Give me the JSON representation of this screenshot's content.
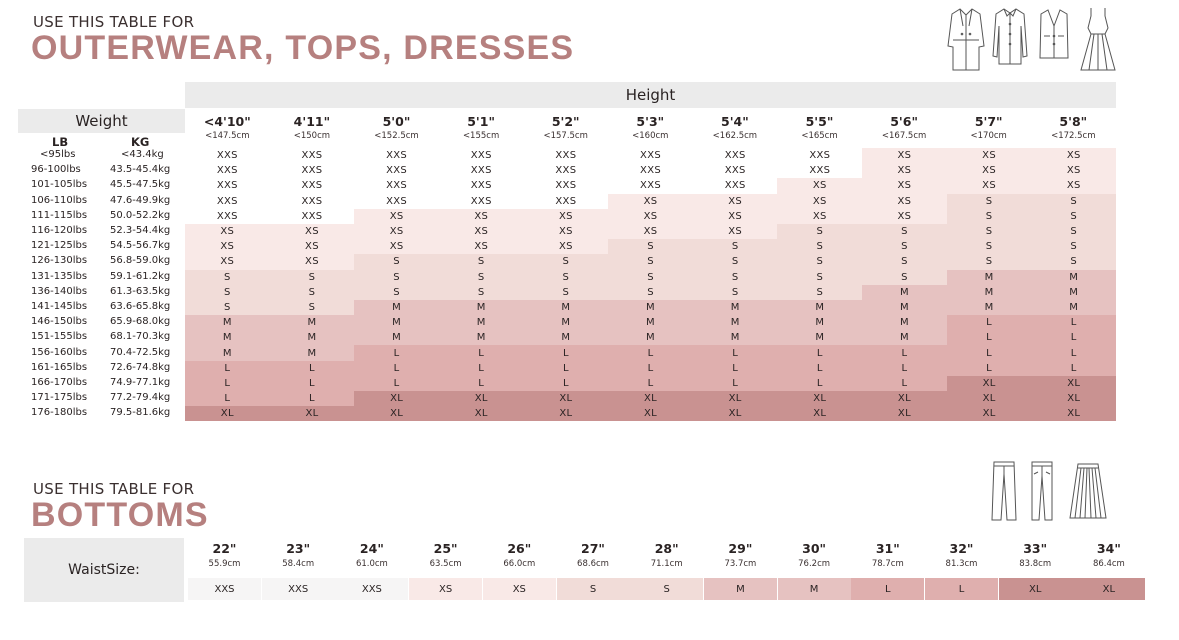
{
  "section1": {
    "eyebrow": "USE THIS TABLE FOR",
    "title": "OUTERWEAR, TOPS, DRESSES",
    "title_color": "#b6807f",
    "icons": [
      "trench-coat-icon",
      "shirt-icon",
      "vest-icon",
      "dress-icon"
    ],
    "height_label": "Height",
    "weight_label": "Weight",
    "lb_label": "LB",
    "kg_label": "KG",
    "heights": [
      {
        "ft": "<4'10\"",
        "cm": "<147.5cm"
      },
      {
        "ft": "4'11\"",
        "cm": "<150cm"
      },
      {
        "ft": "5'0\"",
        "cm": "<152.5cm"
      },
      {
        "ft": "5'1\"",
        "cm": "<155cm"
      },
      {
        "ft": "5'2\"",
        "cm": "<157.5cm"
      },
      {
        "ft": "5'3\"",
        "cm": "<160cm"
      },
      {
        "ft": "5'4\"",
        "cm": "<162.5cm"
      },
      {
        "ft": "5'5\"",
        "cm": "<165cm"
      },
      {
        "ft": "5'6\"",
        "cm": "<167.5cm"
      },
      {
        "ft": "5'7\"",
        "cm": "<170cm"
      },
      {
        "ft": "5'8\"",
        "cm": "<172.5cm"
      }
    ],
    "weights": [
      {
        "lb": "<95lbs",
        "kg": "<43.4kg"
      },
      {
        "lb": "96-100lbs",
        "kg": "43.5-45.4kg"
      },
      {
        "lb": "101-105lbs",
        "kg": "45.5-47.5kg"
      },
      {
        "lb": "106-110lbs",
        "kg": "47.6-49.9kg"
      },
      {
        "lb": "111-115lbs",
        "kg": "50.0-52.2kg"
      },
      {
        "lb": "116-120lbs",
        "kg": "52.3-54.4kg"
      },
      {
        "lb": "121-125lbs",
        "kg": "54.5-56.7kg"
      },
      {
        "lb": "126-130lbs",
        "kg": "56.8-59.0kg"
      },
      {
        "lb": "131-135lbs",
        "kg": "59.1-61.2kg"
      },
      {
        "lb": "136-140lbs",
        "kg": "61.3-63.5kg"
      },
      {
        "lb": "141-145lbs",
        "kg": "63.6-65.8kg"
      },
      {
        "lb": "146-150lbs",
        "kg": "65.9-68.0kg"
      },
      {
        "lb": "151-155lbs",
        "kg": "68.1-70.3kg"
      },
      {
        "lb": "156-160lbs",
        "kg": "70.4-72.5kg"
      },
      {
        "lb": "161-165lbs",
        "kg": "72.6-74.8kg"
      },
      {
        "lb": "166-170lbs",
        "kg": "74.9-77.1kg"
      },
      {
        "lb": "171-175lbs",
        "kg": "77.2-79.4kg"
      },
      {
        "lb": "176-180lbs",
        "kg": "79.5-81.6kg"
      }
    ],
    "sizes": [
      [
        "XXS",
        "XXS",
        "XXS",
        "XXS",
        "XXS",
        "XXS",
        "XXS",
        "XXS",
        "XS",
        "XS",
        "XS"
      ],
      [
        "XXS",
        "XXS",
        "XXS",
        "XXS",
        "XXS",
        "XXS",
        "XXS",
        "XXS",
        "XS",
        "XS",
        "XS"
      ],
      [
        "XXS",
        "XXS",
        "XXS",
        "XXS",
        "XXS",
        "XXS",
        "XXS",
        "XS",
        "XS",
        "XS",
        "XS"
      ],
      [
        "XXS",
        "XXS",
        "XXS",
        "XXS",
        "XXS",
        "XS",
        "XS",
        "XS",
        "XS",
        "S",
        "S"
      ],
      [
        "XXS",
        "XXS",
        "XS",
        "XS",
        "XS",
        "XS",
        "XS",
        "XS",
        "XS",
        "S",
        "S"
      ],
      [
        "XS",
        "XS",
        "XS",
        "XS",
        "XS",
        "XS",
        "XS",
        "S",
        "S",
        "S",
        "S"
      ],
      [
        "XS",
        "XS",
        "XS",
        "XS",
        "XS",
        "S",
        "S",
        "S",
        "S",
        "S",
        "S"
      ],
      [
        "XS",
        "XS",
        "S",
        "S",
        "S",
        "S",
        "S",
        "S",
        "S",
        "S",
        "S"
      ],
      [
        "S",
        "S",
        "S",
        "S",
        "S",
        "S",
        "S",
        "S",
        "S",
        "M",
        "M"
      ],
      [
        "S",
        "S",
        "S",
        "S",
        "S",
        "S",
        "S",
        "S",
        "M",
        "M",
        "M"
      ],
      [
        "S",
        "S",
        "M",
        "M",
        "M",
        "M",
        "M",
        "M",
        "M",
        "M",
        "M"
      ],
      [
        "M",
        "M",
        "M",
        "M",
        "M",
        "M",
        "M",
        "M",
        "M",
        "L",
        "L"
      ],
      [
        "M",
        "M",
        "M",
        "M",
        "M",
        "M",
        "M",
        "M",
        "M",
        "L",
        "L"
      ],
      [
        "M",
        "M",
        "L",
        "L",
        "L",
        "L",
        "L",
        "L",
        "L",
        "L",
        "L"
      ],
      [
        "L",
        "L",
        "L",
        "L",
        "L",
        "L",
        "L",
        "L",
        "L",
        "L",
        "L"
      ],
      [
        "L",
        "L",
        "L",
        "L",
        "L",
        "L",
        "L",
        "L",
        "L",
        "XL",
        "XL"
      ],
      [
        "L",
        "L",
        "XL",
        "XL",
        "XL",
        "XL",
        "XL",
        "XL",
        "XL",
        "XL",
        "XL"
      ],
      [
        "XL",
        "XL",
        "XL",
        "XL",
        "XL",
        "XL",
        "XL",
        "XL",
        "XL",
        "XL",
        "XL"
      ]
    ]
  },
  "section2": {
    "eyebrow": "USE THIS TABLE FOR",
    "title": "BOTTOMS",
    "icons": [
      "trousers-icon",
      "slim-pants-icon",
      "pleated-skirt-icon"
    ],
    "waist_label": "WaistSize:",
    "waists": [
      {
        "in": "22\"",
        "cm": "55.9cm",
        "size": "XXS"
      },
      {
        "in": "23\"",
        "cm": "58.4cm",
        "size": "XXS"
      },
      {
        "in": "24\"",
        "cm": "61.0cm",
        "size": "XXS"
      },
      {
        "in": "25\"",
        "cm": "63.5cm",
        "size": "XS"
      },
      {
        "in": "26\"",
        "cm": "66.0cm",
        "size": "XS"
      },
      {
        "in": "27\"",
        "cm": "68.6cm",
        "size": "S"
      },
      {
        "in": "28\"",
        "cm": "71.1cm",
        "size": "S"
      },
      {
        "in": "29\"",
        "cm": "73.7cm",
        "size": "M"
      },
      {
        "in": "30\"",
        "cm": "76.2cm",
        "size": "M"
      },
      {
        "in": "31\"",
        "cm": "78.7cm",
        "size": "L"
      },
      {
        "in": "32\"",
        "cm": "81.3cm",
        "size": "L"
      },
      {
        "in": "33\"",
        "cm": "83.8cm",
        "size": "XL"
      },
      {
        "in": "34\"",
        "cm": "86.4cm",
        "size": "XL"
      }
    ]
  },
  "size_colors": {
    "XXS": "#ffffff",
    "XS": "#f9e9e7",
    "S": "#f1dcd8",
    "M": "#e6c2c1",
    "L": "#dfafae",
    "XL": "#c99291"
  }
}
